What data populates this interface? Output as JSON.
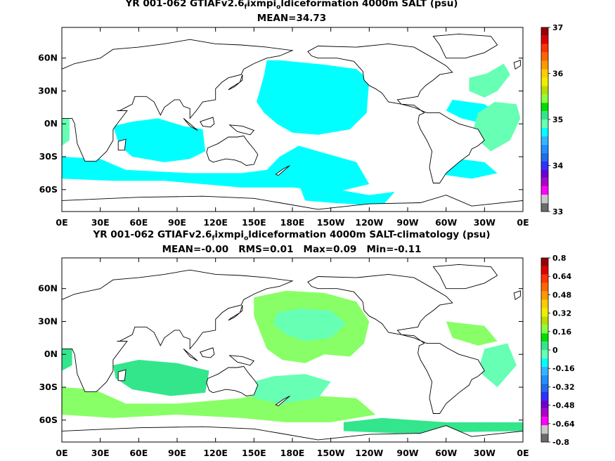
{
  "chart_data": [
    {
      "type": "map",
      "title": {
        "pre": "YR 001-062 GTIAFv2.6",
        "sub1": "f",
        "mid": "ixmpi",
        "sub2": "o",
        "post": "ldiceformation 4000m SALT (psu)"
      },
      "subtitle": "MEAN=34.73",
      "x_ticks": [
        "0E",
        "30E",
        "60E",
        "90E",
        "120E",
        "150E",
        "180E",
        "150W",
        "120W",
        "90W",
        "60W",
        "30W",
        "0E"
      ],
      "y_ticks": [
        "60N",
        "30N",
        "0N",
        "30S",
        "60S"
      ],
      "y_tick_values": [
        60,
        30,
        0,
        -30,
        -60
      ],
      "lon_range": [
        0,
        360
      ],
      "lat_range": [
        -80,
        88
      ],
      "colorbar": {
        "min": 33,
        "max": 37,
        "labels": [
          "37",
          "36",
          "35",
          "34",
          "33"
        ],
        "label_values": [
          37,
          36,
          35,
          34,
          33
        ],
        "colors": [
          "#6b6b6b",
          "#c8c8c8",
          "#ff00ff",
          "#b000c8",
          "#6a00d6",
          "#3030ff",
          "#1e6ee6",
          "#1e90ff",
          "#33b5ff",
          "#00ffff",
          "#66ffb3",
          "#33e68c",
          "#00dd00",
          "#88ff44",
          "#bbdd00",
          "#eeee00",
          "#ffcc00",
          "#ff9900",
          "#ff6600",
          "#ff3300",
          "#dd0000",
          "#990000"
        ]
      }
    },
    {
      "type": "map",
      "title": {
        "pre": "YR 001-062 GTIAFv2.6",
        "sub1": "f",
        "mid": "ixmpi",
        "sub2": "o",
        "post": "ldiceformation 4000m SALT-climatology (psu)"
      },
      "subtitle": "MEAN=-0.00   RMS=0.01   Max=0.09   Min=-0.11",
      "x_ticks": [
        "0E",
        "30E",
        "60E",
        "90E",
        "120E",
        "150E",
        "180E",
        "150W",
        "120W",
        "90W",
        "60W",
        "30W",
        "0E"
      ],
      "y_ticks": [
        "60N",
        "30N",
        "0N",
        "30S",
        "60S"
      ],
      "y_tick_values": [
        60,
        30,
        0,
        -30,
        -60
      ],
      "lon_range": [
        0,
        360
      ],
      "lat_range": [
        -80,
        88
      ],
      "colorbar": {
        "min": -0.8,
        "max": 0.8,
        "labels": [
          "0.8",
          "0.64",
          "0.48",
          "0.32",
          "0.16",
          "0",
          "-0.16",
          "-0.32",
          "-0.48",
          "-0.64",
          "-0.8"
        ],
        "label_values": [
          0.8,
          0.64,
          0.48,
          0.32,
          0.16,
          0,
          -0.16,
          -0.32,
          -0.48,
          -0.64,
          -0.8
        ],
        "colors": [
          "#6b6b6b",
          "#c8c8c8",
          "#ff00ff",
          "#b000c8",
          "#6a00d6",
          "#3030ff",
          "#1e6ee6",
          "#1e90ff",
          "#33b5ff",
          "#00ffff",
          "#66ffb3",
          "#33e68c",
          "#00dd00",
          "#88ff44",
          "#bbdd00",
          "#eeee00",
          "#ffcc00",
          "#ff9900",
          "#ff6600",
          "#ff3300",
          "#dd0000",
          "#990000"
        ]
      }
    }
  ],
  "field_colors": {
    "cyan": "#00ffff",
    "green_light": "#66ffb3",
    "green": "#33e68c",
    "lime": "#88ff66"
  }
}
